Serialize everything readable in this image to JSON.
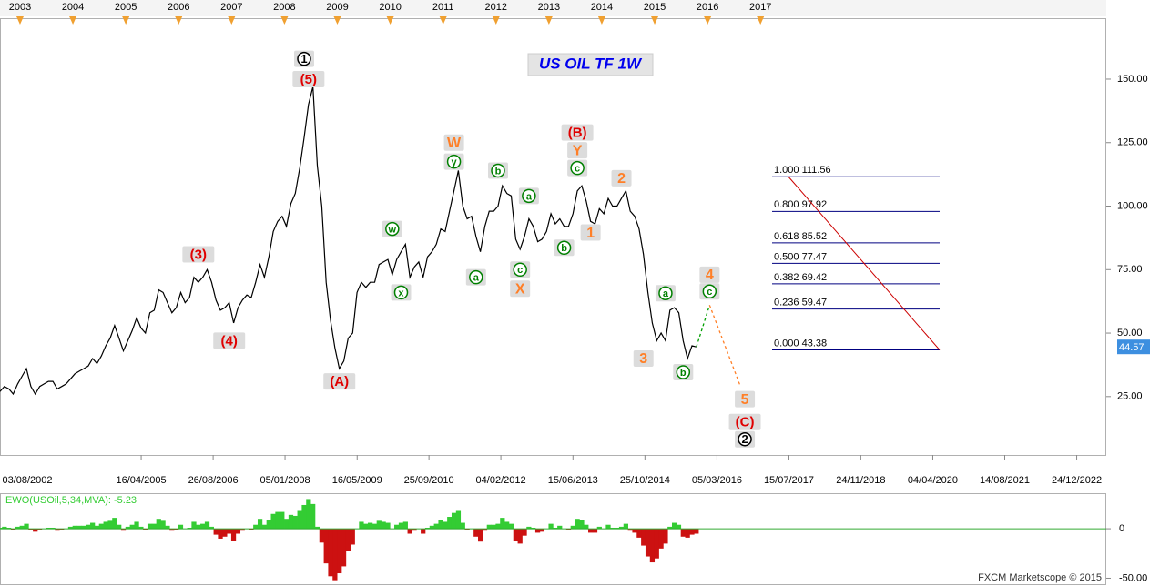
{
  "chart_data": {
    "type": "line",
    "title": "US OIL TF 1W",
    "color": "#000000",
    "x": [
      "2002-08",
      "2002-09",
      "2002-10",
      "2002-11",
      "2002-12",
      "2003-01",
      "2003-02",
      "2003-03",
      "2003-04",
      "2003-05",
      "2003-06",
      "2003-07",
      "2003-08",
      "2003-09",
      "2003-10",
      "2003-11",
      "2003-12",
      "2004-01",
      "2004-02",
      "2004-03",
      "2004-04",
      "2004-05",
      "2004-06",
      "2004-07",
      "2004-08",
      "2004-09",
      "2004-10",
      "2004-11",
      "2004-12",
      "2005-01",
      "2005-02",
      "2005-03",
      "2005-04",
      "2005-05",
      "2005-06",
      "2005-07",
      "2005-08",
      "2005-09",
      "2005-10",
      "2005-11",
      "2005-12",
      "2006-01",
      "2006-02",
      "2006-03",
      "2006-04",
      "2006-05",
      "2006-06",
      "2006-07",
      "2006-08",
      "2006-09",
      "2006-10",
      "2006-11",
      "2006-12",
      "2007-01",
      "2007-02",
      "2007-03",
      "2007-04",
      "2007-05",
      "2007-06",
      "2007-07",
      "2007-08",
      "2007-09",
      "2007-10",
      "2007-11",
      "2007-12",
      "2008-01",
      "2008-02",
      "2008-03",
      "2008-04",
      "2008-05",
      "2008-06",
      "2008-07",
      "2008-08",
      "2008-09",
      "2008-10",
      "2008-11",
      "2008-12",
      "2009-01",
      "2009-02",
      "2009-03",
      "2009-04",
      "2009-05",
      "2009-06",
      "2009-07",
      "2009-08",
      "2009-09",
      "2009-10",
      "2009-11",
      "2009-12",
      "2010-01",
      "2010-02",
      "2010-03",
      "2010-04",
      "2010-05",
      "2010-06",
      "2010-07",
      "2010-08",
      "2010-09",
      "2010-10",
      "2010-11",
      "2010-12",
      "2011-01",
      "2011-02",
      "2011-03",
      "2011-04",
      "2011-05",
      "2011-06",
      "2011-07",
      "2011-08",
      "2011-09",
      "2011-10",
      "2011-11",
      "2011-12",
      "2012-01",
      "2012-02",
      "2012-03",
      "2012-04",
      "2012-05",
      "2012-06",
      "2012-07",
      "2012-08",
      "2012-09",
      "2012-10",
      "2012-11",
      "2012-12",
      "2013-01",
      "2013-02",
      "2013-03",
      "2013-04",
      "2013-05",
      "2013-06",
      "2013-07",
      "2013-08",
      "2013-09",
      "2013-10",
      "2013-11",
      "2013-12",
      "2014-01",
      "2014-02",
      "2014-03",
      "2014-04",
      "2014-05",
      "2014-06",
      "2014-07",
      "2014-08",
      "2014-09",
      "2014-10",
      "2014-11",
      "2014-12",
      "2015-01",
      "2015-02",
      "2015-03",
      "2015-04",
      "2015-05",
      "2015-06",
      "2015-07",
      "2015-08",
      "2015-09",
      "2015-10"
    ],
    "values": [
      27,
      29,
      28,
      26,
      30,
      33,
      36,
      29,
      26,
      29,
      30,
      31,
      31,
      28,
      29,
      30,
      32,
      34,
      35,
      36,
      37,
      40,
      38,
      41,
      45,
      48,
      53,
      48,
      43,
      47,
      51,
      56,
      52,
      50,
      58,
      59,
      67,
      66,
      62,
      58,
      60,
      66,
      62,
      64,
      72,
      70,
      72,
      75,
      70,
      63,
      59,
      60,
      62,
      54,
      60,
      63,
      65,
      64,
      70,
      77,
      72,
      80,
      90,
      94,
      96,
      92,
      101,
      105,
      115,
      127,
      140,
      147,
      116,
      100,
      70,
      55,
      44,
      36,
      39,
      48,
      50,
      66,
      70,
      68,
      70,
      70,
      77,
      78,
      79,
      73,
      79,
      82,
      85,
      72,
      76,
      78,
      72,
      80,
      82,
      85,
      91,
      90,
      98,
      106,
      114,
      100,
      95,
      96,
      88,
      82,
      92,
      98,
      98,
      100,
      108,
      105,
      104,
      87,
      83,
      88,
      95,
      92,
      86,
      87,
      90,
      97,
      93,
      95,
      92,
      92,
      97,
      106,
      108,
      102,
      94,
      93,
      99,
      97,
      103,
      100,
      100,
      103,
      106,
      98,
      96,
      91,
      81,
      66,
      54,
      47,
      50,
      47,
      59,
      60,
      58,
      47,
      40,
      45,
      44.57
    ],
    "xlim": [
      "2002-08",
      "2023-07"
    ],
    "ylim": [
      2,
      174
    ],
    "yticks": [
      {
        "value": 25,
        "label": "25.00"
      },
      {
        "value": 50,
        "label": "50.00"
      },
      {
        "value": 75,
        "label": "75.00"
      },
      {
        "value": 100,
        "label": "100.00"
      },
      {
        "value": 125,
        "label": "125.00"
      },
      {
        "value": 150,
        "label": "150.00"
      }
    ],
    "xticks": [
      {
        "value": "2002-08-03",
        "label": "03/08/2002"
      },
      {
        "value": "2005-04-16",
        "label": "16/04/2005"
      },
      {
        "value": "2006-08-26",
        "label": "26/08/2006"
      },
      {
        "value": "2008-01-05",
        "label": "05/01/2008"
      },
      {
        "value": "2009-05-16",
        "label": "16/05/2009"
      },
      {
        "value": "2010-09-25",
        "label": "25/09/2010"
      },
      {
        "value": "2012-02-04",
        "label": "04/02/2012"
      },
      {
        "value": "2013-06-15",
        "label": "15/06/2013"
      },
      {
        "value": "2014-10-25",
        "label": "25/10/2014"
      },
      {
        "value": "2016-03-05",
        "label": "05/03/2016"
      },
      {
        "value": "2017-07-15",
        "label": "15/07/2017"
      },
      {
        "value": "2018-11-24",
        "label": "24/11/2018"
      },
      {
        "value": "2020-04-04",
        "label": "04/04/2020"
      },
      {
        "value": "2021-08-14",
        "label": "14/08/2021"
      },
      {
        "value": "2022-12-24",
        "label": "24/12/2022"
      }
    ],
    "x2ticks": [
      2003,
      2004,
      2005,
      2006,
      2007,
      2008,
      2009,
      2010,
      2011,
      2012,
      2013,
      2014,
      2015,
      2016,
      2017
    ],
    "last_price": 44.57,
    "projections": [
      {
        "color": "#00a000",
        "x": [
          "2015-10",
          "2016-01"
        ],
        "values": [
          44.57,
          61
        ]
      },
      {
        "color": "#ff7f27",
        "x": [
          "2016-01",
          "2016-08"
        ],
        "values": [
          61,
          29
        ]
      }
    ],
    "fib_color": "#000080",
    "fib_diagonal_color": "#cc0000",
    "fib_levels": [
      {
        "label": "1.000 111.56",
        "value": 111.56
      },
      {
        "label": "0.800 97.92",
        "value": 97.92
      },
      {
        "label": "0.618 85.52",
        "value": 85.52
      },
      {
        "label": "0.500 77.47",
        "value": 77.47
      },
      {
        "label": "0.382 69.42",
        "value": 69.42
      },
      {
        "label": "0.236 59.47",
        "value": 59.47
      },
      {
        "label": "0.000 43.38",
        "value": 43.38
      }
    ],
    "wave_labels": [
      {
        "text": "1",
        "x": "2008-05",
        "y": 158,
        "style": "black"
      },
      {
        "text": "(5)",
        "x": "2008-06",
        "y": 150,
        "style": "red"
      },
      {
        "text": "(3)",
        "x": "2006-05",
        "y": 81,
        "style": "red"
      },
      {
        "text": "(4)",
        "x": "2006-12",
        "y": 47,
        "style": "red"
      },
      {
        "text": "(A)",
        "x": "2009-01",
        "y": 31,
        "style": "red"
      },
      {
        "text": "W",
        "x": "2011-03",
        "y": 125,
        "style": "orange"
      },
      {
        "text": "y",
        "x": "2011-03",
        "y": 117.5,
        "style": "green"
      },
      {
        "text": "w",
        "x": "2010-01",
        "y": 91,
        "style": "green"
      },
      {
        "text": "x",
        "x": "2010-03",
        "y": 66,
        "style": "green"
      },
      {
        "text": "a",
        "x": "2011-08",
        "y": 72,
        "style": "green"
      },
      {
        "text": "b",
        "x": "2012-01",
        "y": 114,
        "style": "green"
      },
      {
        "text": "a",
        "x": "2012-08",
        "y": 104,
        "style": "green"
      },
      {
        "text": "c",
        "x": "2012-06",
        "y": 75,
        "style": "green"
      },
      {
        "text": "X",
        "x": "2012-06",
        "y": 67.5,
        "style": "orange"
      },
      {
        "text": "b",
        "x": "2013-04",
        "y": 83.6,
        "style": "green"
      },
      {
        "text": "(B)",
        "x": "2013-07",
        "y": 129,
        "style": "red"
      },
      {
        "text": "Y",
        "x": "2013-07",
        "y": 122,
        "style": "orange"
      },
      {
        "text": "c",
        "x": "2013-07",
        "y": 115,
        "style": "green"
      },
      {
        "text": "1",
        "x": "2013-10",
        "y": 89.6,
        "style": "orange"
      },
      {
        "text": "2",
        "x": "2014-05",
        "y": 111,
        "style": "orange"
      },
      {
        "text": "3",
        "x": "2014-10",
        "y": 40,
        "style": "orange"
      },
      {
        "text": "a",
        "x": "2015-03",
        "y": 65.7,
        "style": "green"
      },
      {
        "text": "b",
        "x": "2015-07",
        "y": 34.6,
        "style": "green"
      },
      {
        "text": "4",
        "x": "2016-01",
        "y": 73,
        "style": "orange"
      },
      {
        "text": "c",
        "x": "2016-01",
        "y": 66.4,
        "style": "green"
      },
      {
        "text": "5",
        "x": "2016-09",
        "y": 24,
        "style": "orange"
      },
      {
        "text": "(C)",
        "x": "2016-09",
        "y": 15,
        "style": "red"
      },
      {
        "text": "2",
        "x": "2016-09",
        "y": 8.2,
        "style": "black"
      }
    ],
    "oscillator": {
      "label": "EWO(USOil,5,34,MVA): -5.23",
      "up_color": "#33cc33",
      "down_color": "#cc1111",
      "zero_color": "#33aa33",
      "ylim": [
        -56,
        35
      ],
      "yticks": [
        0,
        {
          "value": -50,
          "label": "-50.00"
        }
      ],
      "values": [
        1,
        2,
        1,
        -1,
        2,
        3,
        5,
        -1,
        -3,
        -1,
        0,
        1,
        1,
        -2,
        -1,
        0,
        2,
        3,
        3,
        3,
        4,
        6,
        3,
        5,
        7,
        8,
        11,
        4,
        -2,
        2,
        4,
        7,
        2,
        -1,
        5,
        5,
        10,
        8,
        3,
        -2,
        -1,
        4,
        0,
        1,
        7,
        4,
        5,
        7,
        2,
        -6,
        -10,
        -8,
        -5,
        -12,
        -5,
        -2,
        0,
        -1,
        4,
        10,
        4,
        9,
        15,
        17,
        17,
        10,
        14,
        13,
        18,
        24,
        30,
        25,
        2,
        -14,
        -35,
        -48,
        -52,
        -45,
        -38,
        -22,
        -16,
        0,
        7,
        5,
        6,
        5,
        8,
        7,
        6,
        0,
        4,
        6,
        7,
        -5,
        -2,
        0,
        -5,
        1,
        3,
        5,
        9,
        7,
        12,
        16,
        18,
        6,
        -1,
        0,
        -8,
        -13,
        -2,
        4,
        4,
        5,
        11,
        7,
        5,
        -12,
        -15,
        -7,
        2,
        1,
        -4,
        -3,
        0,
        5,
        1,
        3,
        0,
        -1,
        3,
        10,
        9,
        4,
        -4,
        -4,
        2,
        0,
        4,
        1,
        1,
        2,
        5,
        -2,
        -4,
        -9,
        -17,
        -28,
        -34,
        -30,
        -20,
        -15,
        2,
        6,
        4,
        -8,
        -9,
        -6,
        -5
      ]
    },
    "footer": "FXCM Marketscope © 2015"
  }
}
